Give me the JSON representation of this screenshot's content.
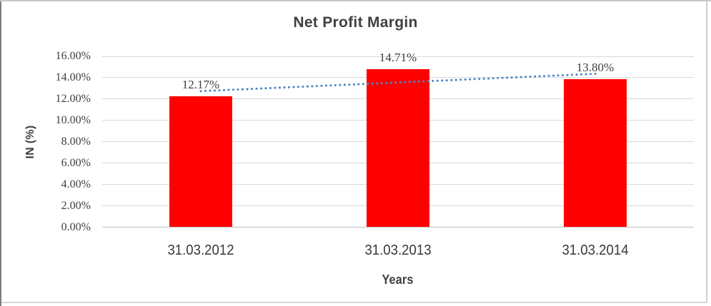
{
  "chart_data": {
    "type": "bar",
    "title": "Net Profit Margin",
    "xlabel": "Years",
    "ylabel": "IN (%)",
    "categories": [
      "31.03.2012",
      "31.03.2013",
      "31.03.2014"
    ],
    "values": [
      12.17,
      14.71,
      13.8
    ],
    "value_labels": [
      "12.17%",
      "14.71%",
      "13.80%"
    ],
    "ylim": [
      0,
      16
    ],
    "ytick_step": 2,
    "ytick_labels": [
      "0.00%",
      "2.00%",
      "4.00%",
      "6.00%",
      "8.00%",
      "10.00%",
      "12.00%",
      "14.00%",
      "16.00%"
    ],
    "grid": true,
    "legend": "none",
    "bar_color": "#ff0000",
    "gridline_color": "#d9d9d9",
    "axis_line_color": "#bfbfbf",
    "text_color": "#404040",
    "trendline": {
      "type": "linear",
      "style": "dotted",
      "color": "#4e86c4",
      "endpoints_pct": [
        12.75,
        14.37
      ]
    }
  }
}
